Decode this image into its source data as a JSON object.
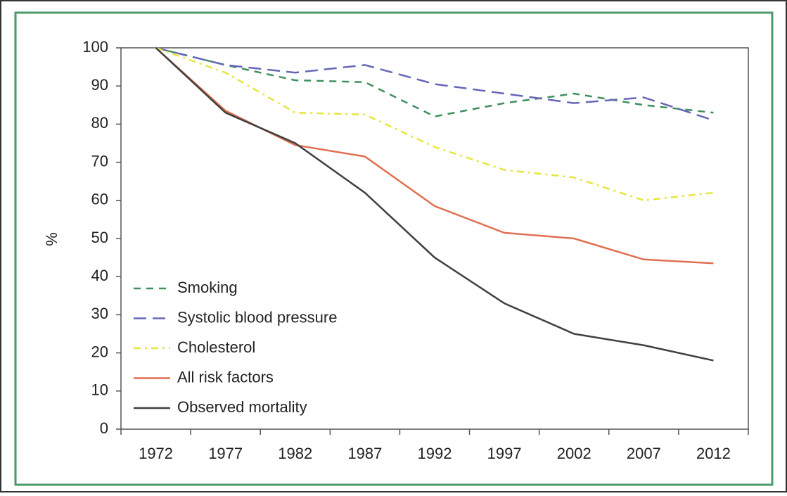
{
  "chart_data": {
    "type": "line",
    "y_label": "%",
    "categories": [
      "1972",
      "1977",
      "1982",
      "1987",
      "1992",
      "1997",
      "2002",
      "2007",
      "2012"
    ],
    "ylim": [
      0,
      100
    ],
    "yticks": [
      0,
      10,
      20,
      30,
      40,
      50,
      60,
      70,
      80,
      90,
      100
    ],
    "grid": false,
    "legend": "lower left",
    "series": [
      {
        "name": "Smoking",
        "color": "#3f8f5e",
        "style": "dashed",
        "values": [
          100,
          95.5,
          91.5,
          91,
          82,
          85.5,
          88,
          85,
          83
        ]
      },
      {
        "name": "Systolic blood pressure",
        "color": "#6666b8",
        "style": "longdash",
        "values": [
          100,
          95.5,
          93.5,
          95.5,
          90.5,
          88,
          85.5,
          87,
          81
        ]
      },
      {
        "name": "Cholesterol",
        "color": "#e6e63c",
        "style": "dashdot",
        "values": [
          100,
          93.5,
          83,
          82.5,
          74,
          68,
          66,
          60,
          62
        ]
      },
      {
        "name": "All risk factors",
        "color": "#e07050",
        "style": "solid",
        "values": [
          100,
          83.5,
          74.5,
          71.5,
          58.5,
          51.5,
          50,
          44.5,
          43.5
        ]
      },
      {
        "name": "Observed mortality",
        "color": "#404040",
        "style": "solid",
        "values": [
          100,
          83,
          75,
          62,
          45,
          33,
          25,
          22,
          18
        ]
      }
    ]
  }
}
